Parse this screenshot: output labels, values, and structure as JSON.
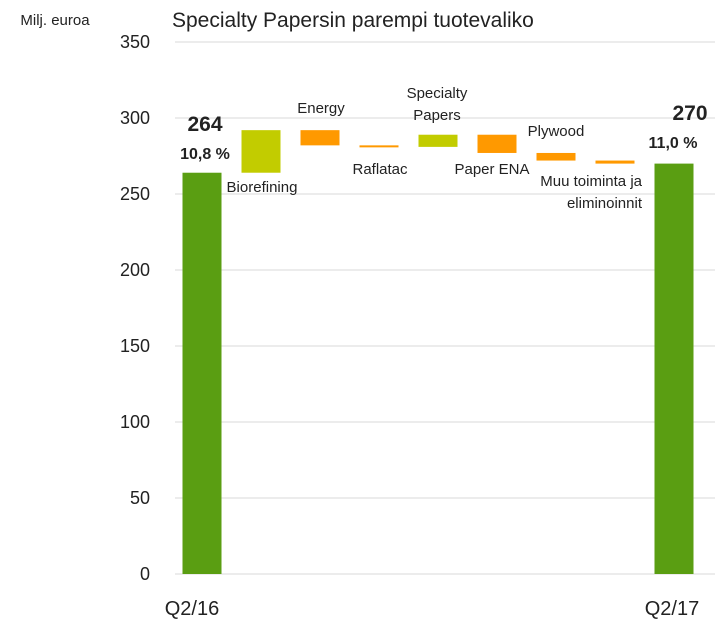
{
  "chart_data": {
    "type": "waterfall",
    "title": "Specialty Papersin parempi tuotevaliko",
    "y_label": "Milj. euroa",
    "categories": [
      "Q2/16",
      "Biorefining",
      "Energy",
      "Raflatac",
      "Specialty Papers",
      "Paper ENA",
      "Plywood",
      "Muu toiminta ja eliminoinnit",
      "Q2/17"
    ],
    "values": [
      264,
      28,
      -10,
      -1,
      8,
      -12,
      -5,
      -2,
      270
    ],
    "measures": [
      "total",
      "relative",
      "relative",
      "relative",
      "relative",
      "relative",
      "relative",
      "relative",
      "total"
    ],
    "annotations": [
      "10,8 %",
      "11,0 %"
    ],
    "colors": {
      "total": "#5a9e12",
      "increase": "#c2cc00",
      "decrease": "#ff9900"
    },
    "ylim": [
      0,
      350
    ],
    "yticks": [
      0,
      50,
      100,
      150,
      200,
      250,
      300,
      350
    ],
    "grid": true
  }
}
